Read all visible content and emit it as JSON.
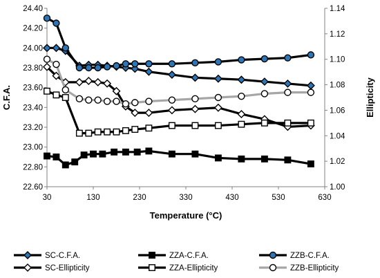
{
  "chart_data": {
    "type": "line",
    "xlabel": "Temperature (°C)",
    "ylabel_left": "C.F.A.",
    "ylabel_right": "Ellipticity",
    "xlim": [
      30,
      630
    ],
    "ylim_left": [
      22.6,
      24.4
    ],
    "ylim_right": [
      1.0,
      1.14
    ],
    "x_ticks": [
      "30",
      "130",
      "230",
      "330",
      "430",
      "530",
      "630"
    ],
    "y_left_ticks": [
      "22.60",
      "22.80",
      "23.00",
      "23.20",
      "23.40",
      "23.60",
      "23.80",
      "24.00",
      "24.20",
      "24.40"
    ],
    "y_right_ticks": [
      "1.00",
      "1.02",
      "1.04",
      "1.06",
      "1.08",
      "1.10",
      "1.12",
      "1.14"
    ],
    "grid": false,
    "legend_position": "bottom",
    "series": [
      {
        "name": "SC-C.F.A.",
        "axis": "left",
        "color": "#000000",
        "marker": "diamond",
        "marker_fill": "#2e75b6",
        "x": [
          30,
          50,
          70,
          100,
          120,
          140,
          160,
          180,
          200,
          220,
          250,
          300,
          350,
          400,
          450,
          500,
          550,
          600
        ],
        "y": [
          24.0,
          24.0,
          23.97,
          23.82,
          23.83,
          23.83,
          23.82,
          23.81,
          23.8,
          23.79,
          23.76,
          23.73,
          23.7,
          23.69,
          23.68,
          23.66,
          23.64,
          23.62
        ]
      },
      {
        "name": "ZZA-C.F.A.",
        "axis": "left",
        "color": "#000000",
        "marker": "square",
        "marker_fill": "#000000",
        "x": [
          30,
          50,
          70,
          90,
          110,
          130,
          150,
          175,
          200,
          225,
          250,
          300,
          350,
          400,
          450,
          500,
          550,
          600
        ],
        "y": [
          22.91,
          22.9,
          22.82,
          22.85,
          22.92,
          22.93,
          22.93,
          22.95,
          22.95,
          22.95,
          22.96,
          22.93,
          22.93,
          22.89,
          22.88,
          22.88,
          22.87,
          22.83
        ]
      },
      {
        "name": "ZZB-C.F.A.",
        "axis": "left",
        "color": "#000000",
        "marker": "circle",
        "marker_fill": "#2e75b6",
        "x": [
          30,
          50,
          70,
          100,
          120,
          140,
          160,
          180,
          200,
          220,
          250,
          300,
          350,
          400,
          450,
          500,
          550,
          600
        ],
        "y": [
          24.3,
          24.25,
          24.0,
          23.8,
          23.8,
          23.8,
          23.81,
          23.82,
          23.84,
          23.84,
          23.84,
          23.84,
          23.85,
          23.86,
          23.88,
          23.89,
          23.9,
          23.93
        ]
      },
      {
        "name": "SC-Ellipticity",
        "axis": "right",
        "color": "#000000",
        "marker": "diamond",
        "marker_fill": "#ffffff",
        "x": [
          30,
          50,
          70,
          100,
          120,
          140,
          160,
          180,
          200,
          220,
          250,
          300,
          350,
          400,
          450,
          500,
          550,
          600
        ],
        "y": [
          1.094,
          1.087,
          1.082,
          1.082,
          1.083,
          1.082,
          1.081,
          1.075,
          1.063,
          1.058,
          1.058,
          1.06,
          1.061,
          1.062,
          1.057,
          1.053,
          1.047,
          1.048
        ]
      },
      {
        "name": "ZZA-Ellipticity",
        "axis": "right",
        "color": "#000000",
        "marker": "square",
        "marker_fill": "#ffffff",
        "x": [
          30,
          50,
          70,
          100,
          120,
          140,
          160,
          180,
          200,
          220,
          250,
          300,
          350,
          400,
          450,
          500,
          550,
          600
        ],
        "y": [
          1.075,
          1.072,
          1.07,
          1.042,
          1.042,
          1.043,
          1.043,
          1.043,
          1.044,
          1.045,
          1.046,
          1.048,
          1.048,
          1.048,
          1.049,
          1.05,
          1.05,
          1.05
        ]
      },
      {
        "name": "ZZB-Ellipticity",
        "axis": "right",
        "color": "#a6a6a6",
        "marker": "circle",
        "marker_fill": "#ffffff",
        "x": [
          30,
          50,
          70,
          100,
          120,
          140,
          160,
          180,
          200,
          220,
          250,
          300,
          350,
          400,
          450,
          500,
          550,
          600
        ],
        "y": [
          1.1,
          1.096,
          1.076,
          1.069,
          1.068,
          1.068,
          1.067,
          1.067,
          1.065,
          1.066,
          1.067,
          1.068,
          1.069,
          1.07,
          1.071,
          1.073,
          1.074,
          1.074
        ]
      }
    ]
  }
}
